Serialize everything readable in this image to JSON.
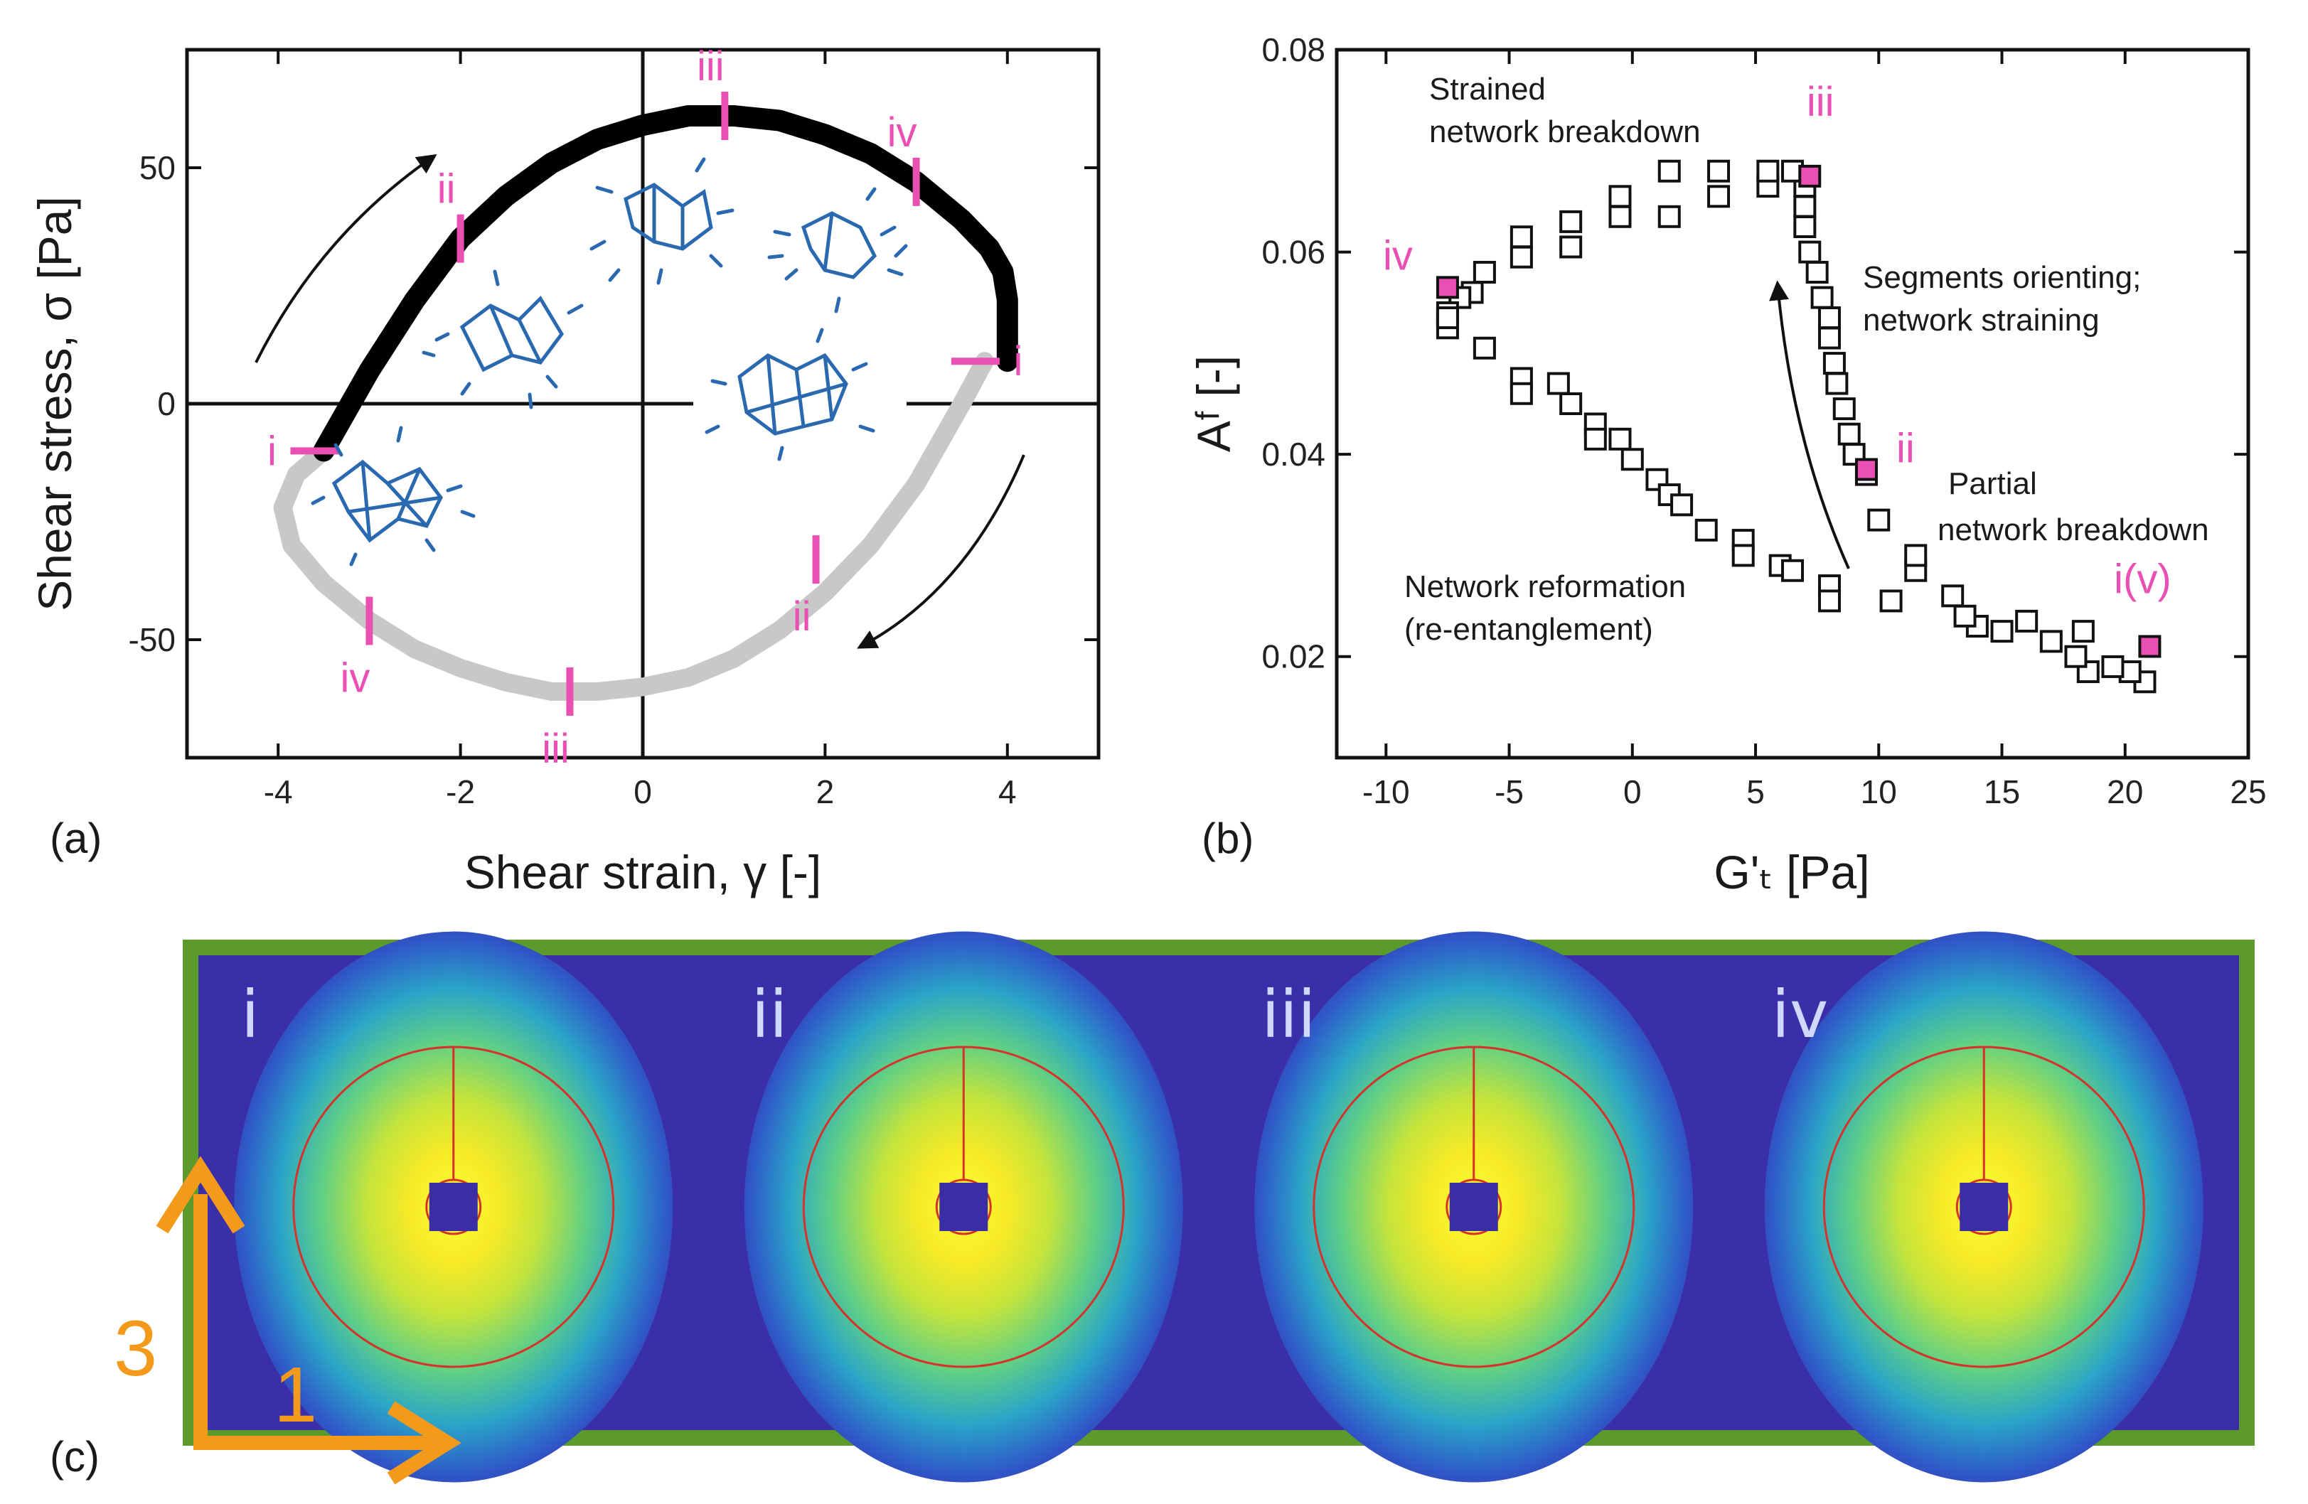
{
  "chart_data": [
    {
      "id": "a",
      "type": "line",
      "panel_label": "(a)",
      "xlabel": "Shear strain, γ [-]",
      "ylabel": "Shear stress, σ [Pa]",
      "xlim": [
        -5,
        5
      ],
      "ylim": [
        -75,
        75
      ],
      "xticks": [
        -4,
        -2,
        0,
        2,
        4
      ],
      "yticks": [
        -50,
        0,
        50
      ],
      "series": [
        {
          "name": "upper branch",
          "color": "#000000",
          "x": [
            -3.5,
            -3.0,
            -2.5,
            -2.0,
            -1.5,
            -1.0,
            -0.5,
            0.0,
            0.5,
            1.0,
            1.5,
            2.0,
            2.5,
            3.0,
            3.5,
            3.8,
            3.95,
            4.0,
            4.0
          ],
          "y": [
            -10,
            7,
            22,
            35,
            44,
            51,
            56,
            59,
            61,
            61,
            60,
            57,
            53,
            47,
            39,
            33,
            28,
            22,
            9
          ]
        },
        {
          "name": "lower branch",
          "color": "#c8c8c8",
          "x": [
            3.75,
            3.5,
            3.0,
            2.5,
            2.0,
            1.5,
            1.0,
            0.5,
            0.0,
            -0.5,
            -1.0,
            -1.5,
            -2.0,
            -2.5,
            -3.0,
            -3.5,
            -3.85,
            -3.95,
            -3.8,
            -3.5
          ],
          "y": [
            9,
            0,
            -17,
            -30,
            -40,
            -48,
            -54,
            -58,
            -60,
            -61,
            -61,
            -59,
            -56,
            -52,
            -46,
            -38,
            -30,
            -22,
            -15,
            -10
          ]
        }
      ],
      "markers": [
        {
          "label": "i",
          "x": -3.6,
          "y": -10,
          "orient": "h"
        },
        {
          "label": "ii",
          "x": -2.0,
          "y": 35,
          "orient": "v"
        },
        {
          "label": "iii",
          "x": 0.9,
          "y": 61,
          "orient": "v"
        },
        {
          "label": "iv",
          "x": 3.0,
          "y": 47,
          "orient": "v"
        },
        {
          "label": "i",
          "x": 3.65,
          "y": 9,
          "orient": "h"
        },
        {
          "label": "ii",
          "x": 1.9,
          "y": -33,
          "orient": "v"
        },
        {
          "label": "iii",
          "x": -0.8,
          "y": -61,
          "orient": "v"
        },
        {
          "label": "iv",
          "x": -3.0,
          "y": -46,
          "orient": "v"
        }
      ]
    },
    {
      "id": "b",
      "type": "scatter",
      "panel_label": "(b)",
      "xlabel": "G'ₜ [Pa]",
      "ylabel": "Aᶠ [-]",
      "xlim": [
        -12,
        25
      ],
      "ylim": [
        0.01,
        0.08
      ],
      "xticks": [
        -10,
        -5,
        0,
        5,
        10,
        15,
        20,
        25
      ],
      "yticks": [
        0.02,
        0.04,
        0.06,
        0.08
      ],
      "points": [
        [
          20.8,
          0.0175
        ],
        [
          20.2,
          0.0185
        ],
        [
          19.5,
          0.019
        ],
        [
          18.5,
          0.0185
        ],
        [
          18.0,
          0.02
        ],
        [
          18.3,
          0.0225
        ],
        [
          17.0,
          0.0215
        ],
        [
          16.0,
          0.0235
        ],
        [
          15.0,
          0.0225
        ],
        [
          14.0,
          0.023
        ],
        [
          13.5,
          0.024
        ],
        [
          13.0,
          0.026
        ],
        [
          11.5,
          0.0285
        ],
        [
          11.5,
          0.03
        ],
        [
          10.0,
          0.0335
        ],
        [
          10.5,
          0.0255
        ],
        [
          9.5,
          0.038
        ],
        [
          9.0,
          0.04
        ],
        [
          8.8,
          0.042
        ],
        [
          8.6,
          0.0445
        ],
        [
          8.3,
          0.047
        ],
        [
          8.2,
          0.049
        ],
        [
          8.0,
          0.0515
        ],
        [
          8.0,
          0.0535
        ],
        [
          7.7,
          0.0555
        ],
        [
          7.5,
          0.058
        ],
        [
          7.2,
          0.06
        ],
        [
          7.0,
          0.0625
        ],
        [
          7.0,
          0.0645
        ],
        [
          7.0,
          0.0665
        ],
        [
          6.5,
          0.068
        ],
        [
          5.5,
          0.0665
        ],
        [
          5.5,
          0.068
        ],
        [
          3.5,
          0.0655
        ],
        [
          3.5,
          0.068
        ],
        [
          1.5,
          0.0635
        ],
        [
          1.5,
          0.068
        ],
        [
          -0.5,
          0.0635
        ],
        [
          -0.5,
          0.0655
        ],
        [
          -2.5,
          0.0605
        ],
        [
          -2.5,
          0.063
        ],
        [
          -4.5,
          0.0595
        ],
        [
          -4.5,
          0.0615
        ],
        [
          -6.0,
          0.058
        ],
        [
          -6.5,
          0.056
        ],
        [
          -7.0,
          0.0555
        ],
        [
          -7.5,
          0.054
        ],
        [
          -7.5,
          0.0525
        ],
        [
          -6.0,
          0.0505
        ],
        [
          -4.5,
          0.0475
        ],
        [
          -4.5,
          0.046
        ],
        [
          -3.0,
          0.047
        ],
        [
          -2.5,
          0.045
        ],
        [
          -1.5,
          0.043
        ],
        [
          -1.5,
          0.0415
        ],
        [
          -0.5,
          0.0415
        ],
        [
          0.0,
          0.0395
        ],
        [
          1.0,
          0.0375
        ],
        [
          1.5,
          0.036
        ],
        [
          2.0,
          0.035
        ],
        [
          3.0,
          0.0325
        ],
        [
          4.5,
          0.0315
        ],
        [
          4.5,
          0.03
        ],
        [
          6.0,
          0.029
        ],
        [
          6.5,
          0.0285
        ],
        [
          8.0,
          0.027
        ],
        [
          8.0,
          0.0255
        ],
        [
          -7.5,
          0.0535
        ]
      ],
      "highlighted": [
        {
          "label": "iv",
          "x": -7.5,
          "y": 0.0565
        },
        {
          "label": "iii",
          "x": 7.2,
          "y": 0.0675
        },
        {
          "label": "ii",
          "x": 9.5,
          "y": 0.0385
        },
        {
          "label": "i(v)",
          "x": 21.0,
          "y": 0.021
        }
      ],
      "annotations": [
        {
          "lines": [
            "Strained",
            "network breakdown"
          ]
        },
        {
          "lines": [
            "Segments orienting;",
            "network straining"
          ]
        },
        {
          "lines": [
            "Partial",
            "network breakdown"
          ]
        },
        {
          "lines": [
            "Network reformation",
            "(re-entanglement)"
          ]
        }
      ]
    }
  ],
  "panel_c": {
    "panel_label": "(c)",
    "frames": [
      "i",
      "ii",
      "iii",
      "iv"
    ],
    "axis_labels": {
      "vertical": "3",
      "horizontal": "1"
    },
    "border_color": "#5b9a2b",
    "axis_arrow_color": "#f39a1c"
  },
  "colors": {
    "highlight": "#ea4fb4",
    "upper_curve": "#000000",
    "lower_curve": "#c8c8c8"
  }
}
